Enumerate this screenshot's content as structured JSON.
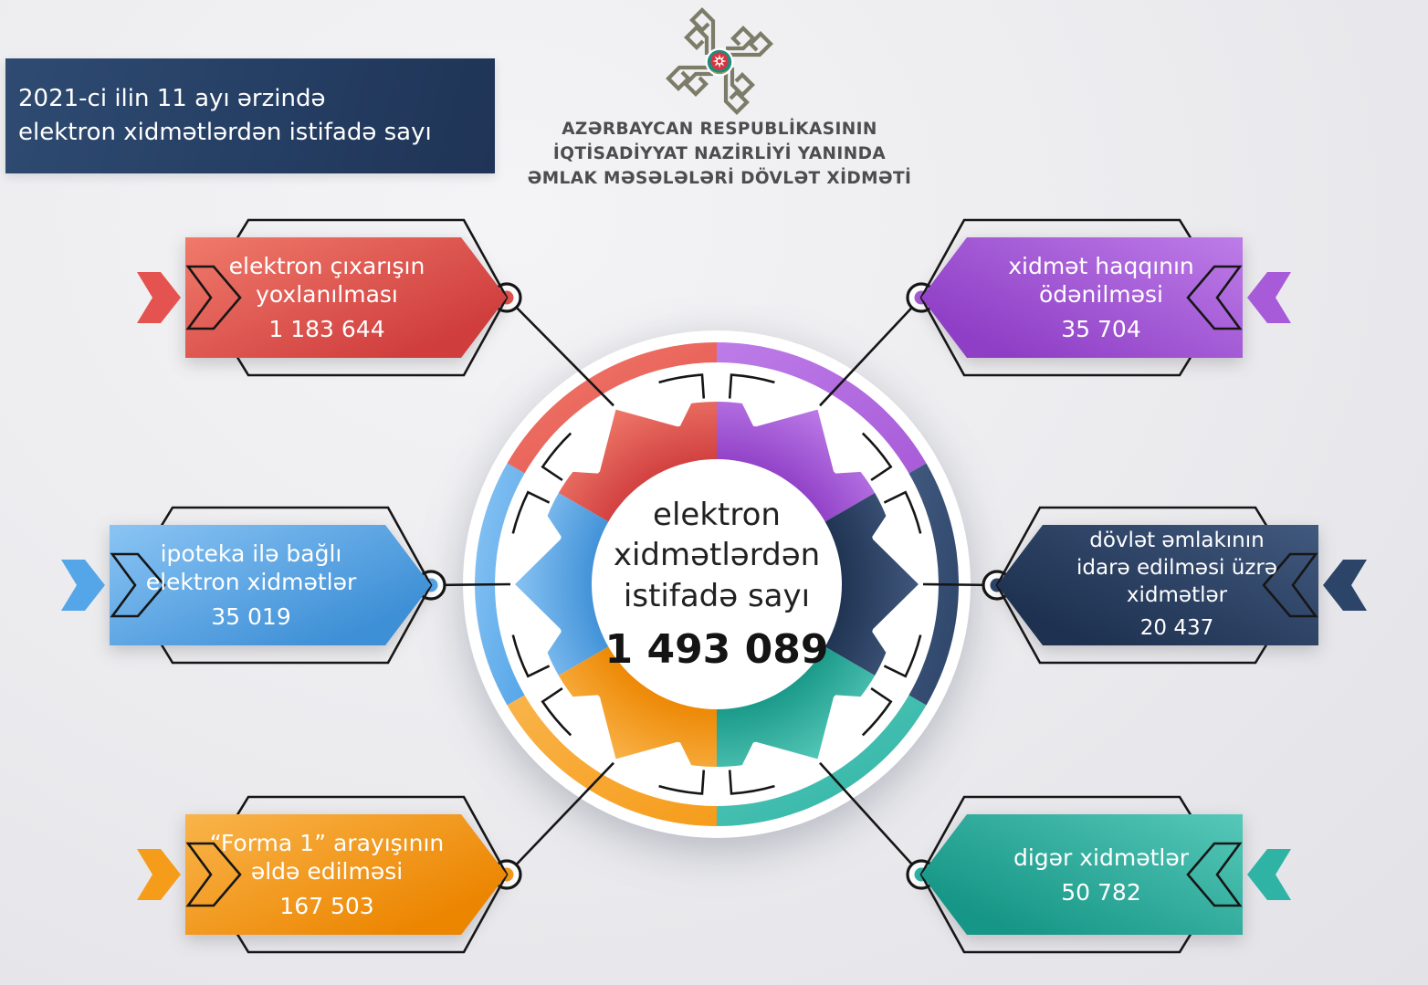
{
  "banner": {
    "line1": "2021-ci ilin 11 ayı ərzində",
    "line2": "elektron xidmətlərdən istifadə sayı"
  },
  "agency": {
    "line1": "AZƏRBAYCAN RESPUBLİKASININ",
    "line2": "İQTİSADİYYAT NAZİRLİYİ YANINDA",
    "line3": "ƏMLAK MƏSƏLƏLƏRİ DÖVLƏT XİDMƏTİ",
    "logo_color": "#7c7c68"
  },
  "center": {
    "line1": "elektron",
    "line2": "xidmətlərdən",
    "line3": "istifadə sayı",
    "total": "1 493 089"
  },
  "services": [
    {
      "id": "red",
      "label_lines": [
        "elektron çıxarışın",
        "yoxlanılması"
      ],
      "value": "1 183 644",
      "color": "#e4534f",
      "color_light": "#f07a6b",
      "color_dark": "#cf3d3d",
      "mid_angle": 330,
      "side": "left"
    },
    {
      "id": "purple",
      "label_lines": [
        "xidmət haqqının",
        "ödənilməsi"
      ],
      "value": "35 704",
      "color": "#a85bd8",
      "color_light": "#bd7ce8",
      "color_dark": "#8f3fc6",
      "mid_angle": 30,
      "side": "right"
    },
    {
      "id": "blue",
      "label_lines": [
        "ipoteka ilə bağlı",
        "elektron xidmətlər"
      ],
      "value": "35 019",
      "color": "#55a6e8",
      "color_light": "#8ac4f4",
      "color_dark": "#3d8fd6",
      "mid_angle": 270,
      "side": "left"
    },
    {
      "id": "navy",
      "label_lines": [
        "dövlət əmlakının",
        "idarə edilməsi üzrə",
        "xidmətlər"
      ],
      "value": "20 437",
      "color": "#2c4468",
      "color_light": "#41597e",
      "color_dark": "#1e3150",
      "mid_angle": 90,
      "side": "right"
    },
    {
      "id": "orange",
      "label_lines": [
        "“Forma 1” arayışının",
        "əldə edilməsi"
      ],
      "value": "167 503",
      "color": "#f69c1b",
      "color_light": "#f9b44a",
      "color_dark": "#ec8500",
      "mid_angle": 210,
      "side": "left"
    },
    {
      "id": "teal",
      "label_lines": [
        "digər xidmətlər"
      ],
      "value": "50 782",
      "color": "#2eb3a5",
      "color_light": "#56c8b9",
      "color_dark": "#169686",
      "mid_angle": 150,
      "side": "right"
    }
  ],
  "chart_data": {
    "type": "pie",
    "title": "2021-ci ilin 11 ayı ərzində elektron xidmətlərdən istifadə sayı",
    "categories": [
      "elektron çıxarışın yoxlanılması",
      "xidmət haqqının ödənilməsi",
      "ipoteka ilə bağlı elektron xidmətlər",
      "dövlət əmlakının idarə edilməsi üzrə xidmətlər",
      "“Forma 1” arayışının əldə edilməsi",
      "digər xidmətlər"
    ],
    "values": [
      1183644,
      35704,
      35019,
      20437,
      167503,
      50782
    ],
    "total_label": "elektron xidmətlərdən istifadə sayı",
    "total": 1493089,
    "colors": [
      "#e4534f",
      "#a85bd8",
      "#55a6e8",
      "#2c4468",
      "#f69c1b",
      "#2eb3a5"
    ],
    "legend_position": "around",
    "note": "donut wheel, equal 60° decorative segments"
  }
}
